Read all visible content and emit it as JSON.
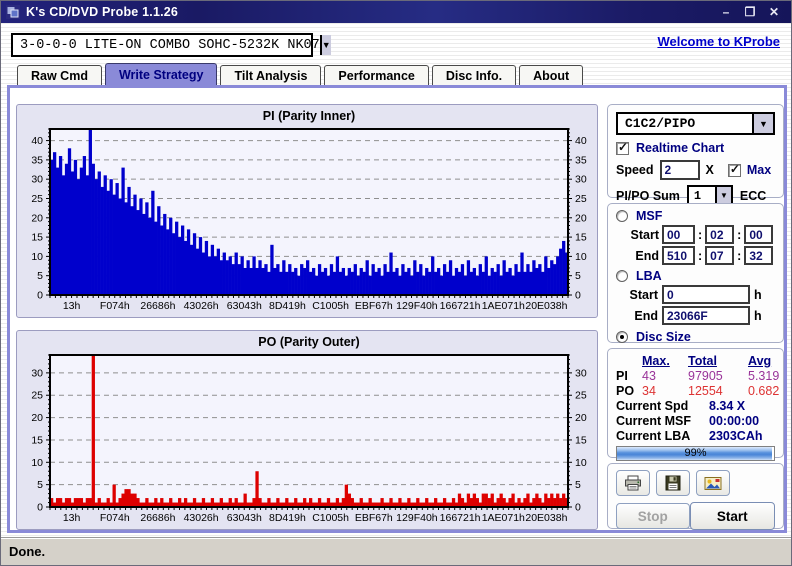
{
  "window": {
    "title": "K's CD/DVD Probe 1.1.26",
    "minimize": "–",
    "maximize": "❐",
    "close": "✕"
  },
  "toolbar": {
    "drive_selected": "3-0-0-0 LITE-ON COMBO SOHC-5232K NK07",
    "welcome_link": "Welcome to KProbe"
  },
  "tabs": [
    {
      "label": "Raw Cmd",
      "active": false
    },
    {
      "label": "Write Strategy",
      "active": true
    },
    {
      "label": "Tilt Analysis",
      "active": false
    },
    {
      "label": "Performance",
      "active": false
    },
    {
      "label": "Disc Info.",
      "active": false
    },
    {
      "label": "About",
      "active": false
    }
  ],
  "settings": {
    "mode_selected": "C1C2/PIPO",
    "realtime_label": "Realtime Chart",
    "realtime_checked": true,
    "speed_label": "Speed",
    "speed_value": "2",
    "speed_unit": "X",
    "max_label": "Max",
    "max_checked": true,
    "pipo_sum_label": "PI/PO Sum",
    "pipo_sum_value": "1",
    "ecc_label": "ECC"
  },
  "range": {
    "msf_label": "MSF",
    "msf_selected": false,
    "start_label": "Start",
    "end_label": "End",
    "sep": ":",
    "msf_start": [
      "00",
      "02",
      "00"
    ],
    "msf_end": [
      "510",
      "07",
      "32"
    ],
    "lba_label": "LBA",
    "lba_selected": false,
    "lba_start": "0",
    "lba_end": "23066F",
    "hex_suffix": "h",
    "disc_size_label": "Disc Size",
    "disc_size_selected": true
  },
  "stats": {
    "headers": {
      "max": "Max.",
      "total": "Total",
      "avg": "Avg"
    },
    "rows": [
      {
        "label": "PI",
        "max": "43",
        "total": "97905",
        "avg": "5.319"
      },
      {
        "label": "PO",
        "max": "34",
        "total": "12554",
        "avg": "0.682"
      }
    ],
    "current": [
      {
        "label": "Current Spd",
        "value": "8.34  X"
      },
      {
        "label": "Current MSF",
        "value": "00:00:00"
      },
      {
        "label": "Current LBA",
        "value": "2303CAh"
      }
    ],
    "progress": {
      "pct": 99,
      "label": "99%"
    }
  },
  "actions": {
    "stop": "Stop",
    "start": "Start"
  },
  "status": "Done.",
  "colors": {
    "accent": "#8a8ad8",
    "navy": "#000080",
    "pi_blue": "#0000cc",
    "po_red": "#dd0000",
    "pi_stat": "#993399",
    "po_stat": "#dd3333",
    "link": "#0000cc",
    "titlebar": "#1c1c6e"
  },
  "chart_data": [
    {
      "type": "bar",
      "title": "PI (Parity Inner)",
      "color": "#0000cc",
      "ylim": [
        0,
        43
      ],
      "yticks": [
        0,
        5,
        10,
        15,
        20,
        25,
        30,
        35,
        40
      ],
      "grid": true,
      "categories": [
        "13h",
        "F074h",
        "26686h",
        "43026h",
        "63043h",
        "8D419h",
        "C1005h",
        "EBF67h",
        "129F40h",
        "166721h",
        "1AE071h",
        "20E038h"
      ],
      "values": [
        35,
        37,
        33,
        36,
        31,
        34,
        38,
        32,
        35,
        30,
        33,
        36,
        31,
        43,
        34,
        30,
        32,
        28,
        31,
        27,
        30,
        26,
        29,
        25,
        33,
        24,
        28,
        23,
        26,
        22,
        25,
        21,
        24,
        20,
        27,
        19,
        23,
        18,
        21,
        17,
        20,
        16,
        19,
        15,
        18,
        14,
        17,
        13,
        16,
        12,
        15,
        11,
        14,
        10,
        13,
        10,
        12,
        9,
        11,
        9,
        10,
        8,
        11,
        8,
        10,
        7,
        9,
        7,
        10,
        7,
        9,
        7,
        8,
        6,
        13,
        7,
        8,
        6,
        9,
        6,
        8,
        6,
        7,
        5,
        8,
        7,
        9,
        6,
        7,
        5,
        8,
        6,
        7,
        5,
        8,
        6,
        10,
        6,
        7,
        5,
        7,
        6,
        8,
        5,
        7,
        6,
        9,
        5,
        8,
        6,
        7,
        5,
        8,
        6,
        11,
        6,
        7,
        5,
        8,
        6,
        7,
        5,
        9,
        6,
        8,
        5,
        7,
        6,
        10,
        6,
        7,
        5,
        8,
        6,
        9,
        5,
        7,
        6,
        8,
        5,
        9,
        6,
        7,
        5,
        8,
        6,
        10,
        5,
        7,
        6,
        8,
        5,
        9,
        6,
        7,
        5,
        8,
        6,
        11,
        6,
        8,
        6,
        9,
        7,
        8,
        6,
        10,
        7,
        9,
        8,
        10,
        12,
        14,
        11
      ]
    },
    {
      "type": "bar",
      "title": "PO (Parity Outer)",
      "color": "#dd0000",
      "ylim": [
        0,
        34
      ],
      "yticks": [
        0,
        5,
        10,
        15,
        20,
        25,
        30
      ],
      "grid": true,
      "categories": [
        "13h",
        "F074h",
        "26686h",
        "43026h",
        "63043h",
        "8D419h",
        "C1005h",
        "EBF67h",
        "129F40h",
        "166721h",
        "1AE071h",
        "20E038h"
      ],
      "values": [
        2,
        1,
        2,
        2,
        1,
        2,
        2,
        1,
        2,
        2,
        2,
        1,
        2,
        2,
        34,
        1,
        2,
        1,
        1,
        2,
        1,
        5,
        1,
        2,
        3,
        4,
        4,
        3,
        3,
        2,
        1,
        1,
        2,
        1,
        1,
        2,
        1,
        2,
        1,
        1,
        2,
        1,
        1,
        2,
        1,
        2,
        1,
        1,
        2,
        1,
        1,
        2,
        1,
        1,
        2,
        1,
        1,
        2,
        1,
        1,
        2,
        1,
        2,
        1,
        1,
        3,
        1,
        1,
        2,
        8,
        2,
        1,
        1,
        2,
        1,
        1,
        2,
        1,
        1,
        2,
        1,
        1,
        2,
        1,
        1,
        2,
        1,
        2,
        1,
        1,
        2,
        1,
        1,
        2,
        1,
        1,
        2,
        1,
        2,
        5,
        3,
        2,
        1,
        1,
        2,
        1,
        1,
        2,
        1,
        1,
        1,
        2,
        1,
        1,
        2,
        1,
        1,
        2,
        1,
        1,
        2,
        1,
        1,
        2,
        1,
        1,
        2,
        1,
        1,
        2,
        1,
        1,
        2,
        1,
        1,
        2,
        1,
        3,
        2,
        1,
        3,
        2,
        3,
        2,
        1,
        3,
        3,
        2,
        3,
        1,
        2,
        3,
        2,
        1,
        2,
        3,
        1,
        2,
        1,
        2,
        3,
        1,
        2,
        3,
        2,
        1,
        3,
        2,
        3,
        2,
        3,
        2,
        3,
        2
      ]
    }
  ]
}
